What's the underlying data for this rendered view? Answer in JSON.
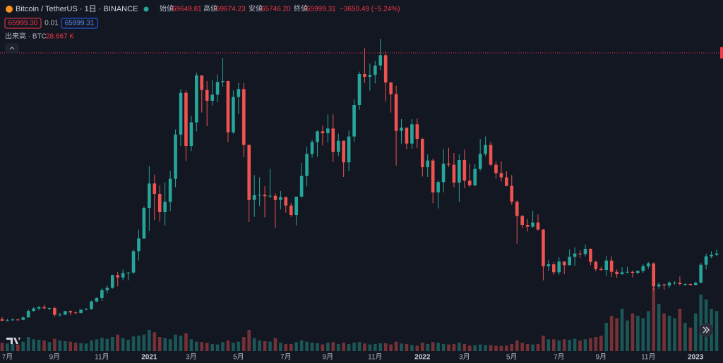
{
  "header": {
    "symbol": "Bitcoin / TetherUS · 1日 · BINANCE",
    "open_label": "始値",
    "open": "69649.81",
    "high_label": "高値",
    "high": "69674.23",
    "low_label": "安値",
    "low": "65746.20",
    "close_label": "終値",
    "close": 65999.31,
    "change": "−3650.49 (−5.24%)",
    "sell": "65999.30",
    "spread": "0.01",
    "buy": "65999.31",
    "volume_label": "出来高 · BTC",
    "volume": "28.667 K"
  },
  "chart_data": {
    "type": "candlestick",
    "up_color": "#26a69a",
    "down_color": "#ef5350",
    "price_line_color": "#f23645",
    "ylim": [
      2550,
      74250
    ],
    "volume_lim": [
      0,
      3000000
    ],
    "xticks": [
      {
        "value": 1,
        "label": "7月"
      },
      {
        "value": 10,
        "label": "9月"
      },
      {
        "value": 19,
        "label": "11月"
      },
      {
        "value": 28,
        "label": "2021"
      },
      {
        "value": 36,
        "label": "3月"
      },
      {
        "value": 45,
        "label": "5月"
      },
      {
        "value": 54,
        "label": "7月"
      },
      {
        "value": 62,
        "label": "9月"
      },
      {
        "value": 71,
        "label": "11月"
      },
      {
        "value": 80,
        "label": "2022"
      },
      {
        "value": 88,
        "label": "3月"
      },
      {
        "value": 97,
        "label": "5月"
      },
      {
        "value": 106,
        "label": "7月"
      },
      {
        "value": 114,
        "label": "9月"
      },
      {
        "value": 123,
        "label": "11月"
      },
      {
        "value": 132,
        "label": "2023"
      }
    ],
    "candles": [
      [
        9300,
        9800,
        8900,
        9000
      ],
      [
        9000,
        9400,
        8900,
        9100
      ],
      [
        9100,
        9500,
        9000,
        9250
      ],
      [
        9250,
        9400,
        9050,
        9200
      ],
      [
        9200,
        9900,
        9100,
        9700
      ],
      [
        9700,
        11400,
        9700,
        11100
      ],
      [
        11100,
        11900,
        10900,
        11600
      ],
      [
        11600,
        12100,
        11200,
        11900
      ],
      [
        11900,
        12400,
        11400,
        11650
      ],
      [
        11650,
        11800,
        11200,
        11700
      ],
      [
        11700,
        12000,
        9900,
        10250
      ],
      [
        10250,
        10700,
        9900,
        10300
      ],
      [
        10300,
        11100,
        10200,
        11050
      ],
      [
        11050,
        11200,
        10150,
        10750
      ],
      [
        10750,
        10950,
        10400,
        10650
      ],
      [
        10650,
        11450,
        10550,
        11350
      ],
      [
        11350,
        11700,
        11200,
        11500
      ],
      [
        11500,
        13300,
        11300,
        13100
      ],
      [
        13100,
        14000,
        12900,
        13800
      ],
      [
        13800,
        15900,
        13200,
        15500
      ],
      [
        15500,
        16500,
        14800,
        16000
      ],
      [
        16000,
        18800,
        15800,
        18700
      ],
      [
        18700,
        19400,
        16300,
        18200
      ],
      [
        18200,
        19900,
        17600,
        19150
      ],
      [
        19150,
        19400,
        17600,
        19250
      ],
      [
        19250,
        24200,
        19000,
        23800
      ],
      [
        23800,
        28400,
        21800,
        26500
      ],
      [
        26500,
        33300,
        26400,
        33000
      ],
      [
        33000,
        41900,
        28100,
        38200
      ],
      [
        38200,
        40100,
        30400,
        36000
      ],
      [
        36000,
        37800,
        30100,
        32100
      ],
      [
        32100,
        38500,
        29200,
        34300
      ],
      [
        34300,
        40900,
        32300,
        39200
      ],
      [
        39200,
        49700,
        37400,
        48600
      ],
      [
        48600,
        58300,
        46200,
        57500
      ],
      [
        57500,
        58000,
        43000,
        46200
      ],
      [
        46200,
        52600,
        45100,
        51200
      ],
      [
        51200,
        61800,
        49300,
        61200
      ],
      [
        61200,
        61200,
        53300,
        58100
      ],
      [
        58100,
        60000,
        50400,
        55800
      ],
      [
        55800,
        60200,
        54800,
        57100
      ],
      [
        57100,
        61400,
        55500,
        59800
      ],
      [
        59800,
        64900,
        58800,
        60000
      ],
      [
        60000,
        60100,
        47000,
        49100
      ],
      [
        49100,
        58000,
        48800,
        56600
      ],
      [
        56600,
        59600,
        53000,
        58300
      ],
      [
        58300,
        59600,
        43800,
        46400
      ],
      [
        46400,
        46500,
        30000,
        34700
      ],
      [
        34700,
        40000,
        31100,
        35700
      ],
      [
        35700,
        39500,
        33400,
        35800
      ],
      [
        35800,
        37600,
        31000,
        35500
      ],
      [
        35500,
        41300,
        35100,
        35600
      ],
      [
        35600,
        36100,
        28800,
        34700
      ],
      [
        34700,
        36600,
        32700,
        35300
      ],
      [
        35300,
        35400,
        32000,
        33500
      ],
      [
        33500,
        34100,
        31100,
        31500
      ],
      [
        31500,
        35400,
        29300,
        35400
      ],
      [
        35400,
        42600,
        35200,
        39800
      ],
      [
        39800,
        46000,
        37600,
        44500
      ],
      [
        44500,
        47500,
        43700,
        47000
      ],
      [
        47000,
        49500,
        43900,
        49300
      ],
      [
        49300,
        50500,
        46300,
        48900
      ],
      [
        48900,
        52900,
        46900,
        49900
      ],
      [
        49900,
        52900,
        42800,
        44900
      ],
      [
        44900,
        48800,
        44000,
        47300
      ],
      [
        47300,
        47300,
        39600,
        42700
      ],
      [
        42700,
        49500,
        40800,
        48200
      ],
      [
        48200,
        56100,
        47100,
        54900
      ],
      [
        54900,
        62000,
        53900,
        61500
      ],
      [
        61500,
        67000,
        59600,
        60900
      ],
      [
        60900,
        63700,
        58000,
        61300
      ],
      [
        61300,
        64300,
        59500,
        63300
      ],
      [
        63300,
        69000,
        62300,
        65500
      ],
      [
        65500,
        66300,
        55700,
        59700
      ],
      [
        59700,
        59800,
        53300,
        57200
      ],
      [
        57200,
        59000,
        42000,
        49400
      ],
      [
        49400,
        51900,
        46700,
        50100
      ],
      [
        50100,
        50100,
        45500,
        46700
      ],
      [
        46700,
        51900,
        45600,
        50800
      ],
      [
        50800,
        52000,
        45700,
        47700
      ],
      [
        47700,
        47900,
        39700,
        41700
      ],
      [
        41700,
        44400,
        39600,
        43100
      ],
      [
        43100,
        43500,
        34000,
        36300
      ],
      [
        36300,
        38900,
        32900,
        38500
      ],
      [
        38500,
        45500,
        36300,
        42400
      ],
      [
        42400,
        45800,
        41700,
        42200
      ],
      [
        42200,
        44700,
        37400,
        38400
      ],
      [
        38400,
        44400,
        34300,
        43200
      ],
      [
        43200,
        45400,
        37200,
        38800
      ],
      [
        38800,
        42400,
        37500,
        37800
      ],
      [
        37800,
        42300,
        37600,
        41300
      ],
      [
        41300,
        47700,
        40900,
        44500
      ],
      [
        44500,
        48200,
        44000,
        46400
      ],
      [
        46400,
        47100,
        41900,
        42200
      ],
      [
        42200,
        42900,
        39200,
        40400
      ],
      [
        40400,
        42900,
        38600,
        39500
      ],
      [
        39500,
        40800,
        37600,
        37700
      ],
      [
        37700,
        40000,
        33700,
        34300
      ],
      [
        34300,
        34600,
        25400,
        31300
      ],
      [
        31300,
        31500,
        28700,
        29400
      ],
      [
        29400,
        30600,
        28000,
        29000
      ],
      [
        29000,
        32400,
        28800,
        29900
      ],
      [
        29900,
        31600,
        28200,
        28400
      ],
      [
        28400,
        28500,
        17600,
        20600
      ],
      [
        20600,
        21900,
        19600,
        21000
      ],
      [
        21000,
        21500,
        18800,
        19300
      ],
      [
        19300,
        22500,
        18800,
        21600
      ],
      [
        21600,
        21600,
        18900,
        20800
      ],
      [
        20800,
        24200,
        20800,
        22600
      ],
      [
        22600,
        24600,
        20700,
        23300
      ],
      [
        23300,
        24000,
        22400,
        23200
      ],
      [
        23200,
        25200,
        22700,
        24300
      ],
      [
        24300,
        24400,
        20800,
        21500
      ],
      [
        21500,
        21800,
        19500,
        20000
      ],
      [
        20000,
        20500,
        19600,
        19800
      ],
      [
        19800,
        22800,
        18500,
        21800
      ],
      [
        21800,
        22700,
        18300,
        19400
      ],
      [
        19400,
        19900,
        18100,
        18900
      ],
      [
        18900,
        20400,
        18800,
        19300
      ],
      [
        19300,
        20500,
        19100,
        19400
      ],
      [
        19400,
        19700,
        18200,
        19200
      ],
      [
        19200,
        19700,
        18900,
        19600
      ],
      [
        19600,
        21000,
        19200,
        20600
      ],
      [
        20600,
        21500,
        20000,
        21200
      ],
      [
        21200,
        21400,
        15500,
        16300
      ],
      [
        16300,
        17200,
        15800,
        16700
      ],
      [
        16700,
        16900,
        15600,
        16500
      ],
      [
        16500,
        17400,
        16000,
        17100
      ],
      [
        17100,
        17400,
        16700,
        17100
      ],
      [
        17100,
        18400,
        16500,
        16800
      ],
      [
        16800,
        17000,
        16400,
        16800
      ],
      [
        16800,
        16900,
        16500,
        16600
      ],
      [
        16600,
        17300,
        16500,
        17100
      ],
      [
        17100,
        21300,
        17000,
        20900
      ],
      [
        20900,
        23300,
        19900,
        22700
      ],
      [
        22700,
        23800,
        22300,
        23000
      ],
      [
        23000,
        24200,
        22800,
        23300
      ]
    ],
    "volumes": [
      350000,
      320000,
      300000,
      280000,
      400000,
      600000,
      500000,
      480000,
      450000,
      380000,
      520000,
      450000,
      420000,
      400000,
      350000,
      330000,
      320000,
      450000,
      500000,
      560000,
      520000,
      600000,
      700000,
      550000,
      480000,
      620000,
      650000,
      700000,
      900000,
      800000,
      600000,
      550000,
      500000,
      700000,
      650000,
      750000,
      500000,
      400000,
      380000,
      350000,
      300000,
      280000,
      380000,
      450000,
      350000,
      400000,
      600000,
      900000,
      550000,
      450000,
      420000,
      400000,
      550000,
      350000,
      300000,
      300000,
      380000,
      450000,
      400000,
      350000,
      330000,
      280000,
      350000,
      380000,
      300000,
      350000,
      300000,
      350000,
      380000,
      320000,
      280000,
      300000,
      330000,
      330000,
      280000,
      400000,
      320000,
      300000,
      250000,
      230000,
      350000,
      300000,
      380000,
      350000,
      300000,
      280000,
      300000,
      350000,
      300000,
      230000,
      250000,
      280000,
      250000,
      250000,
      220000,
      220000,
      230000,
      300000,
      450000,
      350000,
      300000,
      280000,
      300000,
      650000,
      500000,
      500000,
      450000,
      500000,
      480000,
      520000,
      450000,
      500000,
      550000,
      600000,
      650000,
      1200000,
      1500000,
      1400000,
      1800000,
      1300000,
      1600000,
      1500000,
      1400000,
      1700000,
      2700000,
      2000000,
      1600000,
      1500000,
      1400000,
      1800000,
      1200000,
      1000000,
      1600000,
      2400000,
      2200000,
      1800000,
      1700000
    ]
  }
}
